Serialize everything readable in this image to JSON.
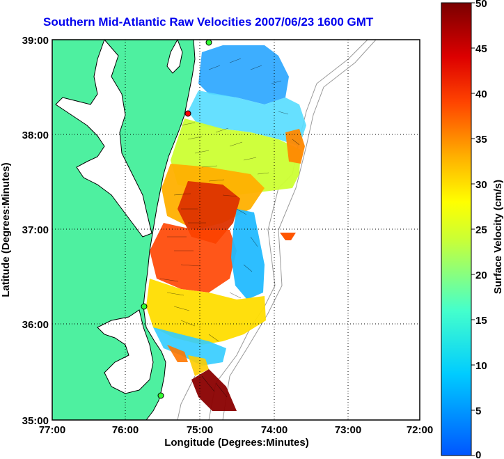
{
  "title": "Southern Mid-Atlantic Raw Velocities 2007/06/23 1600 GMT",
  "x_axis": {
    "label": "Longitude (Degrees:Minutes)",
    "ticks": [
      "77:00",
      "76:00",
      "75:00",
      "74:00",
      "73:00",
      "72:00"
    ],
    "values": [
      -77,
      -76,
      -75,
      -74,
      -73,
      -72
    ]
  },
  "y_axis": {
    "label": "Latitude (Degrees:Minutes)",
    "ticks": [
      "39:00",
      "38:00",
      "37:00",
      "36:00",
      "35:00"
    ],
    "values": [
      39,
      38,
      37,
      36,
      35
    ]
  },
  "colorbar": {
    "label": "Surface Velocity (cm/s)",
    "ticks": [
      "50",
      "45",
      "40",
      "35",
      "30",
      "25",
      "20",
      "15",
      "10",
      "5",
      "0"
    ],
    "min": 0,
    "max": 50
  },
  "colors": {
    "land": "#4ef0a0",
    "water": "#ffffff",
    "title": "#0000ee"
  }
}
